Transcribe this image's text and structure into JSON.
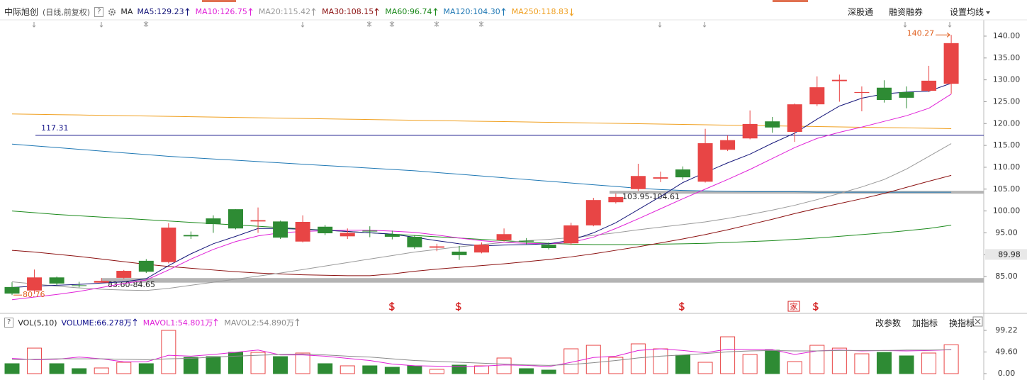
{
  "header": {
    "stock": "中际旭创",
    "period": "(日线,前复权)",
    "help": "?",
    "ma_label": "MA",
    "links": [
      "深股通",
      "融资融券",
      "设置均线"
    ]
  },
  "volume_header": {
    "help": "?",
    "name": "VOL(5,10)",
    "actions": [
      "改参数",
      "加指标",
      "换指标"
    ]
  },
  "marker_label": "家",
  "chart_data": [
    {
      "type": "candlestick",
      "up_color": "#e84545",
      "down_color": "#2e8b34",
      "open": [
        82.6,
        81.8,
        84.8,
        83.0,
        83.6,
        84.7,
        88.6,
        88.3,
        94.5,
        98.3,
        100.4,
        97.6,
        97.6,
        93.0,
        96.4,
        94.2,
        95.5,
        94.7,
        94.1,
        91.6,
        90.7,
        90.5,
        93.3,
        93.2,
        92.3,
        92.6,
        96.7,
        102.0,
        105.0,
        107.4,
        109.5,
        106.7,
        114.0,
        116.6,
        120.5,
        118.1,
        124.4,
        129.7,
        127.0,
        128.2,
        127.2,
        127.5,
        129.1
      ],
      "high": [
        83.7,
        86.6,
        85.0,
        83.8,
        84.65,
        86.5,
        89.0,
        97.2,
        95.3,
        99.0,
        100.4,
        100.8,
        97.8,
        99.0,
        96.8,
        96.0,
        96.5,
        95.5,
        94.5,
        92.5,
        92.0,
        92.8,
        96.0,
        93.8,
        92.8,
        97.3,
        103.0,
        104.0,
        110.8,
        109.0,
        110.2,
        118.8,
        117.3,
        123.0,
        121.5,
        124.6,
        130.8,
        131.2,
        128.5,
        129.9,
        128.5,
        133.2,
        140.27
      ],
      "low": [
        80.76,
        81.0,
        83.0,
        82.5,
        83.6,
        84.5,
        85.8,
        88.0,
        93.6,
        95.0,
        95.8,
        95.0,
        93.6,
        92.8,
        94.5,
        93.6,
        94.0,
        93.5,
        91.3,
        90.8,
        88.8,
        90.3,
        93.0,
        92.3,
        91.2,
        92.2,
        96.5,
        101.7,
        104.6,
        106.6,
        107.2,
        106.5,
        113.7,
        116.4,
        117.9,
        115.8,
        124.0,
        125.0,
        122.8,
        124.8,
        123.5,
        127.2,
        126.8
      ],
      "close": [
        81.1,
        84.8,
        83.4,
        82.9,
        84.0,
        86.3,
        86.1,
        96.2,
        94.2,
        97.0,
        96.0,
        97.9,
        93.9,
        97.5,
        94.9,
        95.0,
        95.3,
        94.1,
        91.7,
        91.9,
        89.9,
        92.3,
        94.7,
        93.0,
        91.5,
        96.7,
        102.5,
        103.2,
        108.0,
        107.7,
        107.7,
        115.5,
        116.2,
        119.9,
        119.1,
        124.4,
        128.3,
        130.0,
        127.2,
        125.4,
        125.9,
        129.8,
        138.4
      ],
      "series": [
        {
          "name": "MA5:129.23",
          "color": "#15167a",
          "values": [
            82.5,
            82.8,
            83.0,
            83.2,
            83.5,
            83.8,
            84.5,
            87.5,
            90.2,
            92.5,
            94.2,
            96.0,
            96.0,
            95.8,
            95.6,
            95.3,
            95.0,
            94.7,
            94.0,
            93.2,
            92.5,
            92.0,
            92.2,
            92.3,
            92.5,
            93.3,
            95.0,
            97.3,
            100.3,
            103.3,
            106.5,
            108.8,
            111.0,
            113.0,
            115.5,
            117.8,
            121.0,
            124.0,
            125.8,
            126.8,
            127.2,
            127.4,
            129.23
          ]
        },
        {
          "name": "MA10:126.75",
          "color": "#e022d8",
          "values": [
            79.7,
            80.3,
            80.9,
            81.6,
            82.5,
            83.4,
            84.2,
            86.5,
            89.0,
            91.2,
            93.0,
            94.3,
            95.0,
            95.3,
            95.5,
            95.6,
            95.6,
            95.4,
            95.1,
            94.5,
            93.8,
            93.2,
            92.8,
            92.6,
            92.5,
            92.8,
            94.0,
            96.0,
            98.2,
            100.5,
            102.8,
            105.0,
            107.2,
            109.5,
            112.0,
            114.5,
            116.6,
            118.0,
            119.2,
            120.5,
            121.8,
            123.5,
            126.75
          ]
        },
        {
          "name": "MA20:115.42",
          "color": "#9a9a9a",
          "values": [
            83.8,
            83.3,
            82.8,
            82.4,
            82.1,
            81.9,
            81.8,
            82.3,
            83.0,
            83.7,
            84.4,
            85.1,
            85.8,
            86.6,
            87.4,
            88.2,
            89.0,
            89.8,
            90.6,
            91.2,
            91.8,
            92.3,
            92.8,
            93.2,
            93.5,
            93.9,
            94.4,
            95.0,
            95.7,
            96.3,
            96.9,
            97.5,
            98.3,
            99.2,
            100.2,
            101.3,
            102.6,
            104.0,
            105.5,
            107.2,
            109.6,
            112.5,
            115.42
          ]
        },
        {
          "name": "MA30:108.15",
          "color": "#8b1010",
          "values": [
            91.0,
            90.6,
            90.1,
            89.6,
            89.0,
            88.4,
            87.8,
            87.3,
            86.9,
            86.5,
            86.1,
            85.8,
            85.6,
            85.4,
            85.3,
            85.2,
            85.2,
            85.6,
            86.2,
            86.7,
            87.1,
            87.5,
            87.9,
            88.4,
            88.9,
            89.5,
            90.2,
            91.0,
            91.8,
            92.7,
            93.6,
            94.6,
            95.7,
            96.9,
            98.1,
            99.4,
            100.6,
            101.7,
            102.8,
            104.0,
            105.4,
            106.8,
            108.15
          ]
        },
        {
          "name": "MA60:96.74",
          "color": "#1c8a1c",
          "values": [
            100.0,
            99.6,
            99.2,
            98.9,
            98.6,
            98.3,
            98.0,
            97.7,
            97.4,
            97.1,
            96.8,
            96.5,
            96.2,
            95.9,
            95.6,
            95.3,
            95.0,
            94.7,
            94.4,
            94.1,
            93.8,
            93.5,
            93.2,
            92.9,
            92.6,
            92.4,
            92.3,
            92.3,
            92.3,
            92.4,
            92.5,
            92.6,
            92.8,
            93.0,
            93.2,
            93.5,
            93.8,
            94.2,
            94.6,
            95.0,
            95.5,
            96.0,
            96.74
          ]
        },
        {
          "name": "MA120:104.30",
          "color": "#1f78b4",
          "values": [
            115.3,
            114.9,
            114.5,
            114.1,
            113.7,
            113.3,
            112.9,
            112.5,
            112.2,
            111.9,
            111.6,
            111.3,
            111.0,
            110.7,
            110.4,
            110.1,
            109.8,
            109.5,
            109.2,
            108.8,
            108.4,
            108.0,
            107.6,
            107.2,
            106.8,
            106.4,
            106.0,
            105.6,
            105.2,
            104.9,
            104.7,
            104.6,
            104.5,
            104.4,
            104.4,
            104.4,
            104.3,
            104.3,
            104.3,
            104.3,
            104.3,
            104.3,
            104.3
          ]
        },
        {
          "name": "MA250:118.83",
          "color": "#f0a020",
          "values": [
            122.2,
            122.12,
            122.04,
            121.96,
            121.88,
            121.8,
            121.72,
            121.64,
            121.56,
            121.48,
            121.4,
            121.32,
            121.24,
            121.16,
            121.08,
            121.0,
            120.92,
            120.84,
            120.76,
            120.68,
            120.6,
            120.52,
            120.44,
            120.36,
            120.28,
            120.2,
            120.12,
            120.04,
            119.96,
            119.88,
            119.8,
            119.72,
            119.64,
            119.56,
            119.48,
            119.4,
            119.32,
            119.24,
            119.16,
            119.08,
            119.0,
            118.92,
            118.83
          ]
        }
      ],
      "hline": {
        "value": 117.31,
        "color": "#1a1a8c"
      },
      "bands": [
        {
          "low": 103.95,
          "high": 104.61,
          "label": "103.95-104.61"
        },
        {
          "low": 83.6,
          "high": 84.65,
          "label": "83.60-84.65"
        }
      ],
      "high_label": 140.27,
      "low_label": 80.76,
      "last_price": 89.98,
      "ylim": [
        76.9,
        143.4
      ],
      "yticks": [
        {
          "value": 85,
          "label": "85.00"
        },
        {
          "value": 90,
          "label": "90.00"
        },
        {
          "value": 95,
          "label": "95.00"
        },
        {
          "value": 100,
          "label": "100.00"
        },
        {
          "value": 105,
          "label": "105.00"
        },
        {
          "value": 110,
          "label": "110.00"
        },
        {
          "value": 115,
          "label": "115.00"
        },
        {
          "value": 120,
          "label": "120.00"
        },
        {
          "value": 125,
          "label": "125.00"
        },
        {
          "value": 130,
          "label": "130.00"
        },
        {
          "value": 135,
          "label": "135.00"
        },
        {
          "value": 140,
          "label": "140.00"
        }
      ]
    },
    {
      "type": "bar",
      "volume_label": "VOLUME:66.278万",
      "volume_color": "#0a0a8a",
      "values": [
        22.8,
        58.5,
        22.8,
        11.4,
        13.0,
        26.0,
        22.8,
        99.22,
        37.4,
        39.0,
        48.8,
        48.8,
        39.0,
        47.2,
        22.8,
        17.9,
        17.9,
        14.6,
        17.9,
        9.8,
        19.5,
        17.9,
        35.8,
        11.4,
        8.1,
        56.9,
        65.0,
        37.4,
        68.3,
        56.9,
        42.3,
        26.0,
        84.5,
        43.9,
        53.7,
        27.6,
        65.0,
        58.5,
        45.5,
        48.8,
        40.7,
        47.2,
        66.278
      ],
      "series": [
        {
          "name": "MAVOL1:54.801万",
          "color": "#e022d8",
          "values": [
            35,
            32,
            33,
            38,
            34,
            27,
            27,
            42,
            40,
            44,
            49,
            54,
            43,
            43,
            40,
            35,
            30,
            22,
            18,
            17,
            16,
            17,
            20,
            19,
            16,
            26,
            37,
            40,
            53,
            57,
            53,
            48,
            56,
            55,
            55,
            44,
            52,
            54,
            52,
            53,
            52,
            53,
            54.801
          ]
        },
        {
          "name": "MAVOL2:54.890万",
          "color": "#8a8a8a",
          "values": [
            32,
            33,
            34,
            34,
            34,
            33,
            32,
            34,
            35,
            38,
            40,
            42,
            44,
            45,
            43,
            40,
            38,
            34,
            30,
            28,
            26,
            24,
            22,
            20,
            19,
            21,
            25,
            30,
            36,
            40,
            43,
            46,
            50,
            52,
            53,
            52,
            52,
            53,
            53,
            53,
            54,
            54,
            54.89
          ]
        }
      ],
      "ylim": [
        0,
        104.1
      ],
      "yticks": [
        {
          "value": 0,
          "label": "0.00"
        },
        {
          "value": 49.6,
          "label": "49.60"
        },
        {
          "value": 99.22,
          "label": "99.22"
        }
      ]
    }
  ]
}
